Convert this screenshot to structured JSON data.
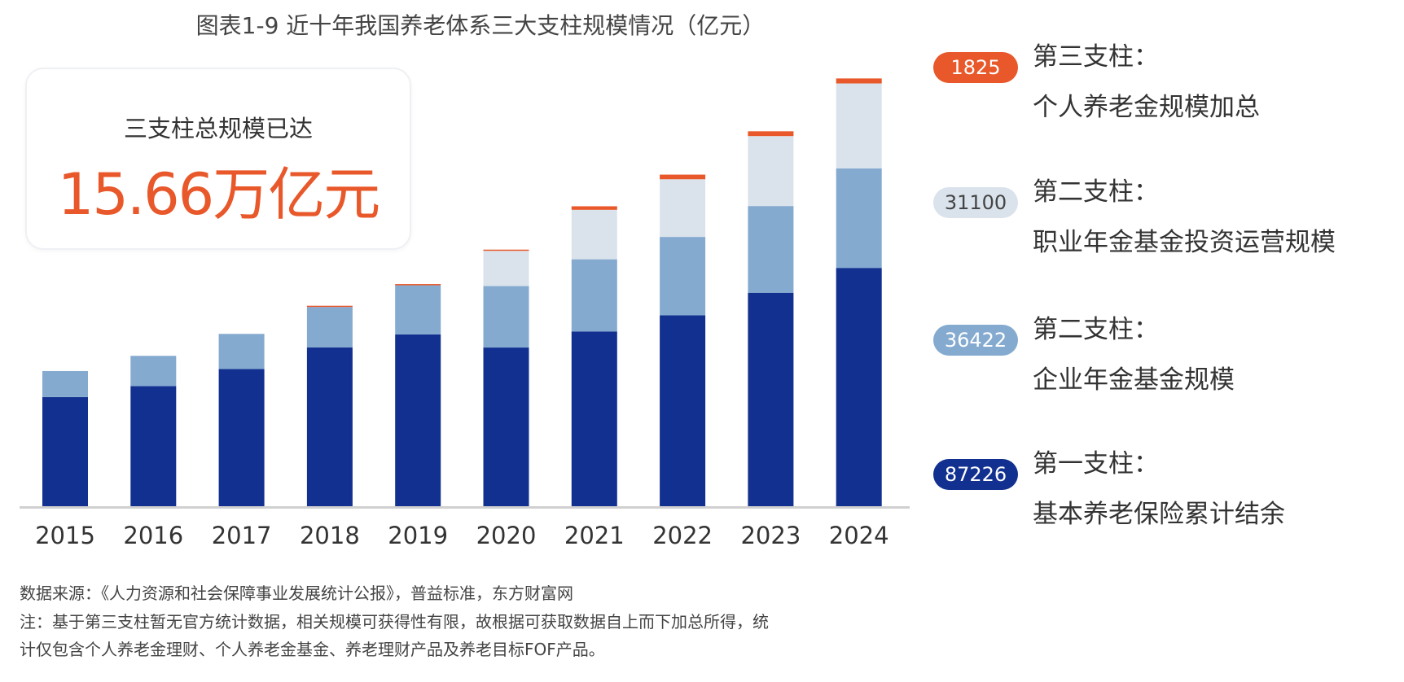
{
  "chart_data": {
    "type": "bar",
    "stacked": true,
    "title": "图表1-9 近十年我国养老体系三大支柱规模情况（亿元）",
    "categories": [
      "2015",
      "2016",
      "2017",
      "2018",
      "2019",
      "2020",
      "2021",
      "2022",
      "2023",
      "2024"
    ],
    "series": [
      {
        "name": "第一支柱：基本养老保险累计结余",
        "color": "#12308f",
        "values": [
          39937,
          43965,
          50202,
          58152,
          62873,
          58075,
          63970,
          69851,
          78128,
          87226
        ]
      },
      {
        "name": "第二支柱：企业年金基金规模",
        "color": "#85aad0",
        "values": [
          9526,
          11075,
          12880,
          14770,
          17985,
          22497,
          26406,
          28718,
          31750,
          36422
        ]
      },
      {
        "name": "第二支柱：职业年金基金投资运营规模",
        "color": "#dae3ec",
        "values": [
          0,
          0,
          0,
          0,
          0,
          12900,
          18110,
          21100,
          25600,
          31100
        ]
      },
      {
        "name": "第三支柱：个人养老金规模加总",
        "color": "#e8582a",
        "values": [
          0,
          0,
          0,
          100,
          150,
          300,
          1300,
          1700,
          1750,
          1825
        ]
      }
    ],
    "ylim": [
      0,
      160000
    ],
    "grid": false,
    "legend_position": "right"
  },
  "highlight": {
    "label": "三支柱总规模已达",
    "value": "15.66万亿元"
  },
  "legend": [
    {
      "value": "1825",
      "line1": "第三支柱：",
      "line2": "个人养老金规模加总",
      "pill_bg": "#e8582a",
      "pill_fg": "#ffffff"
    },
    {
      "value": "31100",
      "line1": "第二支柱：",
      "line2": "职业年金基金投资运营规模",
      "pill_bg": "#dae3ec",
      "pill_fg": "#444444"
    },
    {
      "value": "36422",
      "line1": "第二支柱：",
      "line2": "企业年金基金规模",
      "pill_bg": "#85aad0",
      "pill_fg": "#ffffff"
    },
    {
      "value": "87226",
      "line1": "第一支柱：",
      "line2": "基本养老保险累计结余",
      "pill_bg": "#12308f",
      "pill_fg": "#ffffff"
    }
  ],
  "footer": {
    "source": "数据来源：《人力资源和社会保障事业发展统计公报》，普益标准，东方财富网",
    "note1": "注：基于第三支柱暂无官方统计数据，相关规模可获得性有限，故根据可获取数据自上而下加总所得，统",
    "note2": "计仅包含个人养老金理财、个人养老金基金、养老理财产品及养老目标FOF产品。"
  }
}
